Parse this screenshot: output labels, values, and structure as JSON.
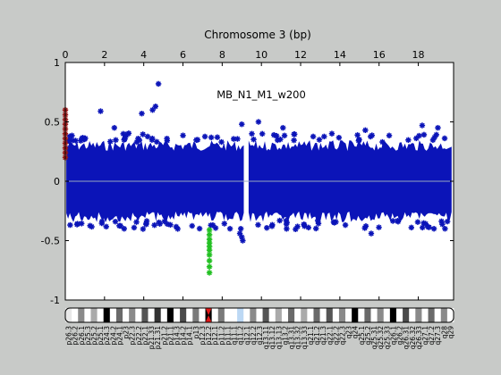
{
  "figure": {
    "background": "#c8cac8",
    "plot_background": "#ffffff",
    "point_color": "#0b14b8",
    "baseline_color": "#9aa6c0"
  },
  "chart_data": {
    "type": "scatter",
    "title": "Chromosome 3 (bp)",
    "annotation": "MB_N1_M1_w200",
    "x_axis_position": "top",
    "xlim": [
      0,
      19.8
    ],
    "ylim": [
      -1,
      1
    ],
    "xticks": [
      0,
      2,
      4,
      6,
      8,
      10,
      12,
      14,
      16,
      18
    ],
    "yticks": [
      -1,
      -0.5,
      0,
      0.5,
      1
    ],
    "ytick_labels": [
      "-1",
      "-0.5",
      "0",
      "0.5",
      "1"
    ],
    "grid": false,
    "baseline_y": 0,
    "main_series": {
      "color": "#0b14b8",
      "band_segments": [
        {
          "x_start": 0.05,
          "x_end": 9.1,
          "y_low": -0.3,
          "y_high": 0.3
        },
        {
          "x_start": 9.35,
          "x_end": 19.7,
          "y_low": -0.3,
          "y_high": 0.3
        }
      ],
      "outliers": [
        {
          "x": 4.75,
          "y": 0.82
        },
        {
          "x": 4.6,
          "y": 0.63
        },
        {
          "x": 4.45,
          "y": 0.6
        },
        {
          "x": 3.9,
          "y": 0.57
        },
        {
          "x": 1.8,
          "y": 0.59
        },
        {
          "x": 9.0,
          "y": 0.48
        },
        {
          "x": 11.1,
          "y": 0.45
        },
        {
          "x": 18.2,
          "y": 0.47
        },
        {
          "x": 19.0,
          "y": 0.45
        },
        {
          "x": 9.85,
          "y": 0.5
        },
        {
          "x": 15.3,
          "y": 0.43
        },
        {
          "x": 2.5,
          "y": 0.45
        },
        {
          "x": 8.95,
          "y": -0.4
        },
        {
          "x": 9.0,
          "y": -0.47
        },
        {
          "x": 9.05,
          "y": -0.5
        },
        {
          "x": 8.9,
          "y": -0.44
        },
        {
          "x": 18.8,
          "y": -0.4
        },
        {
          "x": 15.6,
          "y": -0.44
        },
        {
          "x": 3.0,
          "y": -0.4
        },
        {
          "x": 5.2,
          "y": -0.36
        },
        {
          "x": 12.4,
          "y": -0.39
        }
      ]
    },
    "highlight_series": [
      {
        "color": "#9b1a1a",
        "points": [
          {
            "x": 0.0,
            "y": 0.6
          },
          {
            "x": 0.0,
            "y": 0.56
          },
          {
            "x": 0.0,
            "y": 0.52
          },
          {
            "x": 0.0,
            "y": 0.48
          },
          {
            "x": 0.0,
            "y": 0.44
          },
          {
            "x": 0.0,
            "y": 0.4
          },
          {
            "x": 0.0,
            "y": 0.36
          },
          {
            "x": 0.0,
            "y": 0.32
          },
          {
            "x": 0.0,
            "y": 0.28
          },
          {
            "x": 0.0,
            "y": 0.24
          },
          {
            "x": 0.0,
            "y": 0.2
          }
        ]
      },
      {
        "color": "#22c022",
        "points": [
          {
            "x": 7.35,
            "y": -0.41
          },
          {
            "x": 7.35,
            "y": -0.45
          },
          {
            "x": 7.35,
            "y": -0.49
          },
          {
            "x": 7.35,
            "y": -0.52
          },
          {
            "x": 7.35,
            "y": -0.55
          },
          {
            "x": 7.35,
            "y": -0.58
          },
          {
            "x": 7.35,
            "y": -0.62
          },
          {
            "x": 7.35,
            "y": -0.67
          },
          {
            "x": 7.35,
            "y": -0.72
          },
          {
            "x": 7.35,
            "y": -0.77
          }
        ]
      }
    ]
  },
  "ideogram": {
    "centromere_color": "#e01818",
    "centromere_index": 22,
    "bands": [
      {
        "label": "p26.3",
        "stain": "#e8e8e8"
      },
      {
        "label": "p26.2",
        "stain": "#ffffff"
      },
      {
        "label": "p26.1",
        "stain": "#8a8a8a"
      },
      {
        "label": "p25.3",
        "stain": "#ffffff"
      },
      {
        "label": "p25.2",
        "stain": "#aaaaaa"
      },
      {
        "label": "p25.1",
        "stain": "#ffffff"
      },
      {
        "label": "p24.3",
        "stain": "#000000"
      },
      {
        "label": "p24.2",
        "stain": "#ffffff"
      },
      {
        "label": "p24.1",
        "stain": "#6a6a6a"
      },
      {
        "label": "p23",
        "stain": "#ffffff"
      },
      {
        "label": "p22.3",
        "stain": "#8a8a8a"
      },
      {
        "label": "p22.2",
        "stain": "#ffffff"
      },
      {
        "label": "p22.1",
        "stain": "#555555"
      },
      {
        "label": "p21.33",
        "stain": "#ffffff"
      },
      {
        "label": "p21.31",
        "stain": "#333333"
      },
      {
        "label": "p21.2",
        "stain": "#ffffff"
      },
      {
        "label": "p21.1",
        "stain": "#000000"
      },
      {
        "label": "p14.3",
        "stain": "#ffffff"
      },
      {
        "label": "p14.2",
        "stain": "#4a4a4a"
      },
      {
        "label": "p14.1",
        "stain": "#ffffff"
      },
      {
        "label": "p13",
        "stain": "#7a7a7a"
      },
      {
        "label": "p12.3",
        "stain": "#ffffff"
      },
      {
        "label": "p12.2",
        "stain": "#000000"
      },
      {
        "label": "p12.1",
        "stain": "#ffffff"
      },
      {
        "label": "p11.2",
        "stain": "#7a7a7a"
      },
      {
        "label": "p11.1",
        "stain": "#ffffff"
      },
      {
        "label": "q11.1",
        "stain": "#ffffff"
      },
      {
        "label": "q11.2",
        "stain": "#bcd8f4"
      },
      {
        "label": "q12.1",
        "stain": "#ffffff"
      },
      {
        "label": "q12.2",
        "stain": "#8a8a8a"
      },
      {
        "label": "q12.3",
        "stain": "#ffffff"
      },
      {
        "label": "q13.11",
        "stain": "#555555"
      },
      {
        "label": "q13.12",
        "stain": "#ffffff"
      },
      {
        "label": "q13.13",
        "stain": "#aaaaaa"
      },
      {
        "label": "q13.2",
        "stain": "#ffffff"
      },
      {
        "label": "q13.31",
        "stain": "#6a6a6a"
      },
      {
        "label": "q13.32",
        "stain": "#ffffff"
      },
      {
        "label": "q13.33",
        "stain": "#aaaaaa"
      },
      {
        "label": "q21.1",
        "stain": "#ffffff"
      },
      {
        "label": "q21.2",
        "stain": "#6a6a6a"
      },
      {
        "label": "q21.3",
        "stain": "#ffffff"
      },
      {
        "label": "q22.1",
        "stain": "#555555"
      },
      {
        "label": "q22.2",
        "stain": "#ffffff"
      },
      {
        "label": "q22.3",
        "stain": "#8a8a8a"
      },
      {
        "label": "q23",
        "stain": "#ffffff"
      },
      {
        "label": "q24",
        "stain": "#000000"
      },
      {
        "label": "q25.1",
        "stain": "#ffffff"
      },
      {
        "label": "q25.2",
        "stain": "#6a6a6a"
      },
      {
        "label": "q25.31",
        "stain": "#ffffff"
      },
      {
        "label": "q25.32",
        "stain": "#8a8a8a"
      },
      {
        "label": "q25.33",
        "stain": "#ffffff"
      },
      {
        "label": "q26.1",
        "stain": "#000000"
      },
      {
        "label": "q26.2",
        "stain": "#ffffff"
      },
      {
        "label": "q26.31",
        "stain": "#4a4a4a"
      },
      {
        "label": "q26.32",
        "stain": "#ffffff"
      },
      {
        "label": "q26.33",
        "stain": "#8a8a8a"
      },
      {
        "label": "q27.1",
        "stain": "#ffffff"
      },
      {
        "label": "q27.2",
        "stain": "#6a6a6a"
      },
      {
        "label": "q27.3",
        "stain": "#ffffff"
      },
      {
        "label": "q28",
        "stain": "#8a8a8a"
      },
      {
        "label": "q29",
        "stain": "#ffffff"
      }
    ]
  }
}
